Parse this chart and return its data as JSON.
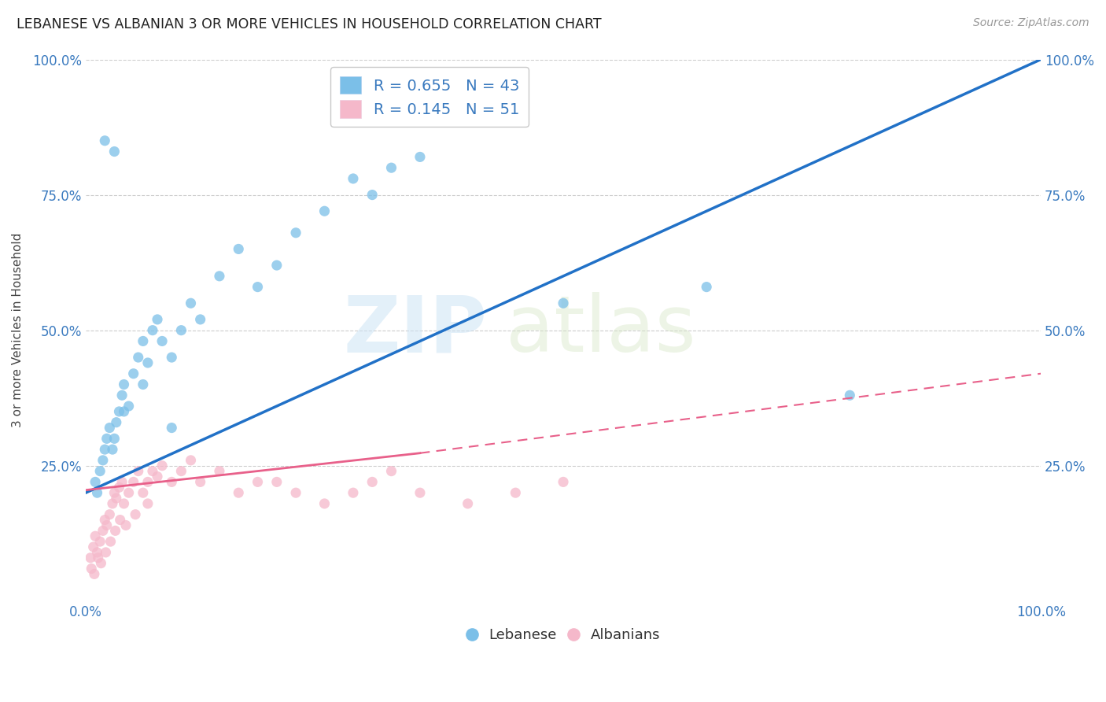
{
  "title": "LEBANESE VS ALBANIAN 3 OR MORE VEHICLES IN HOUSEHOLD CORRELATION CHART",
  "source": "Source: ZipAtlas.com",
  "ylabel": "3 or more Vehicles in Household",
  "xlabel": "",
  "xlim": [
    0.0,
    100.0
  ],
  "ylim": [
    0.0,
    100.0
  ],
  "xticks": [
    0.0,
    25.0,
    50.0,
    75.0,
    100.0
  ],
  "xtick_labels": [
    "0.0%",
    "",
    "",
    "",
    "100.0%"
  ],
  "yticks": [
    25.0,
    50.0,
    75.0,
    100.0
  ],
  "ytick_labels": [
    "25.0%",
    "50.0%",
    "75.0%",
    "100.0%"
  ],
  "watermark_zip": "ZIP",
  "watermark_atlas": "atlas",
  "legend_R_blue": "0.655",
  "legend_N_blue": "43",
  "legend_R_pink": "0.145",
  "legend_N_pink": "51",
  "blue_color": "#7bbfe8",
  "pink_color": "#f5b8ca",
  "line_blue_color": "#2171c7",
  "line_pink_color": "#e8608a",
  "dot_size": 90,
  "blue_line_x0": 0.0,
  "blue_line_y0": 20.0,
  "blue_line_x1": 100.0,
  "blue_line_y1": 100.0,
  "pink_line_x0": 0.0,
  "pink_line_y0": 20.5,
  "pink_line_x1": 100.0,
  "pink_line_y1": 40.0,
  "pink_dash_x0": 0.0,
  "pink_dash_y0": 22.0,
  "pink_dash_x1": 100.0,
  "pink_dash_y1": 42.0,
  "blue_x": [
    1.0,
    1.2,
    1.5,
    1.8,
    2.0,
    2.2,
    2.5,
    2.8,
    3.0,
    3.2,
    3.5,
    3.8,
    4.0,
    4.5,
    5.0,
    5.5,
    6.0,
    6.5,
    7.0,
    7.5,
    8.0,
    9.0,
    10.0,
    11.0,
    12.0,
    14.0,
    16.0,
    18.0,
    20.0,
    22.0,
    25.0,
    28.0,
    30.0,
    32.0,
    35.0,
    50.0,
    65.0,
    80.0,
    2.0,
    3.0,
    4.0,
    6.0,
    9.0
  ],
  "blue_y": [
    22.0,
    20.0,
    24.0,
    26.0,
    28.0,
    30.0,
    32.0,
    28.0,
    30.0,
    33.0,
    35.0,
    38.0,
    40.0,
    36.0,
    42.0,
    45.0,
    48.0,
    44.0,
    50.0,
    52.0,
    48.0,
    45.0,
    50.0,
    55.0,
    52.0,
    60.0,
    65.0,
    58.0,
    62.0,
    68.0,
    72.0,
    78.0,
    75.0,
    80.0,
    82.0,
    55.0,
    58.0,
    38.0,
    85.0,
    83.0,
    35.0,
    40.0,
    32.0
  ],
  "pink_x": [
    0.5,
    0.8,
    1.0,
    1.2,
    1.5,
    1.8,
    2.0,
    2.2,
    2.5,
    2.8,
    3.0,
    3.2,
    3.5,
    3.8,
    4.0,
    4.5,
    5.0,
    5.5,
    6.0,
    6.5,
    7.0,
    7.5,
    8.0,
    9.0,
    10.0,
    11.0,
    12.0,
    14.0,
    16.0,
    18.0,
    20.0,
    22.0,
    25.0,
    28.0,
    30.0,
    32.0,
    35.0,
    40.0,
    45.0,
    50.0,
    0.6,
    0.9,
    1.3,
    1.6,
    2.1,
    2.6,
    3.1,
    3.6,
    4.2,
    5.2,
    6.5
  ],
  "pink_y": [
    8.0,
    10.0,
    12.0,
    9.0,
    11.0,
    13.0,
    15.0,
    14.0,
    16.0,
    18.0,
    20.0,
    19.0,
    21.0,
    22.0,
    18.0,
    20.0,
    22.0,
    24.0,
    20.0,
    22.0,
    24.0,
    23.0,
    25.0,
    22.0,
    24.0,
    26.0,
    22.0,
    24.0,
    20.0,
    22.0,
    22.0,
    20.0,
    18.0,
    20.0,
    22.0,
    24.0,
    20.0,
    18.0,
    20.0,
    22.0,
    6.0,
    5.0,
    8.0,
    7.0,
    9.0,
    11.0,
    13.0,
    15.0,
    14.0,
    16.0,
    18.0
  ]
}
